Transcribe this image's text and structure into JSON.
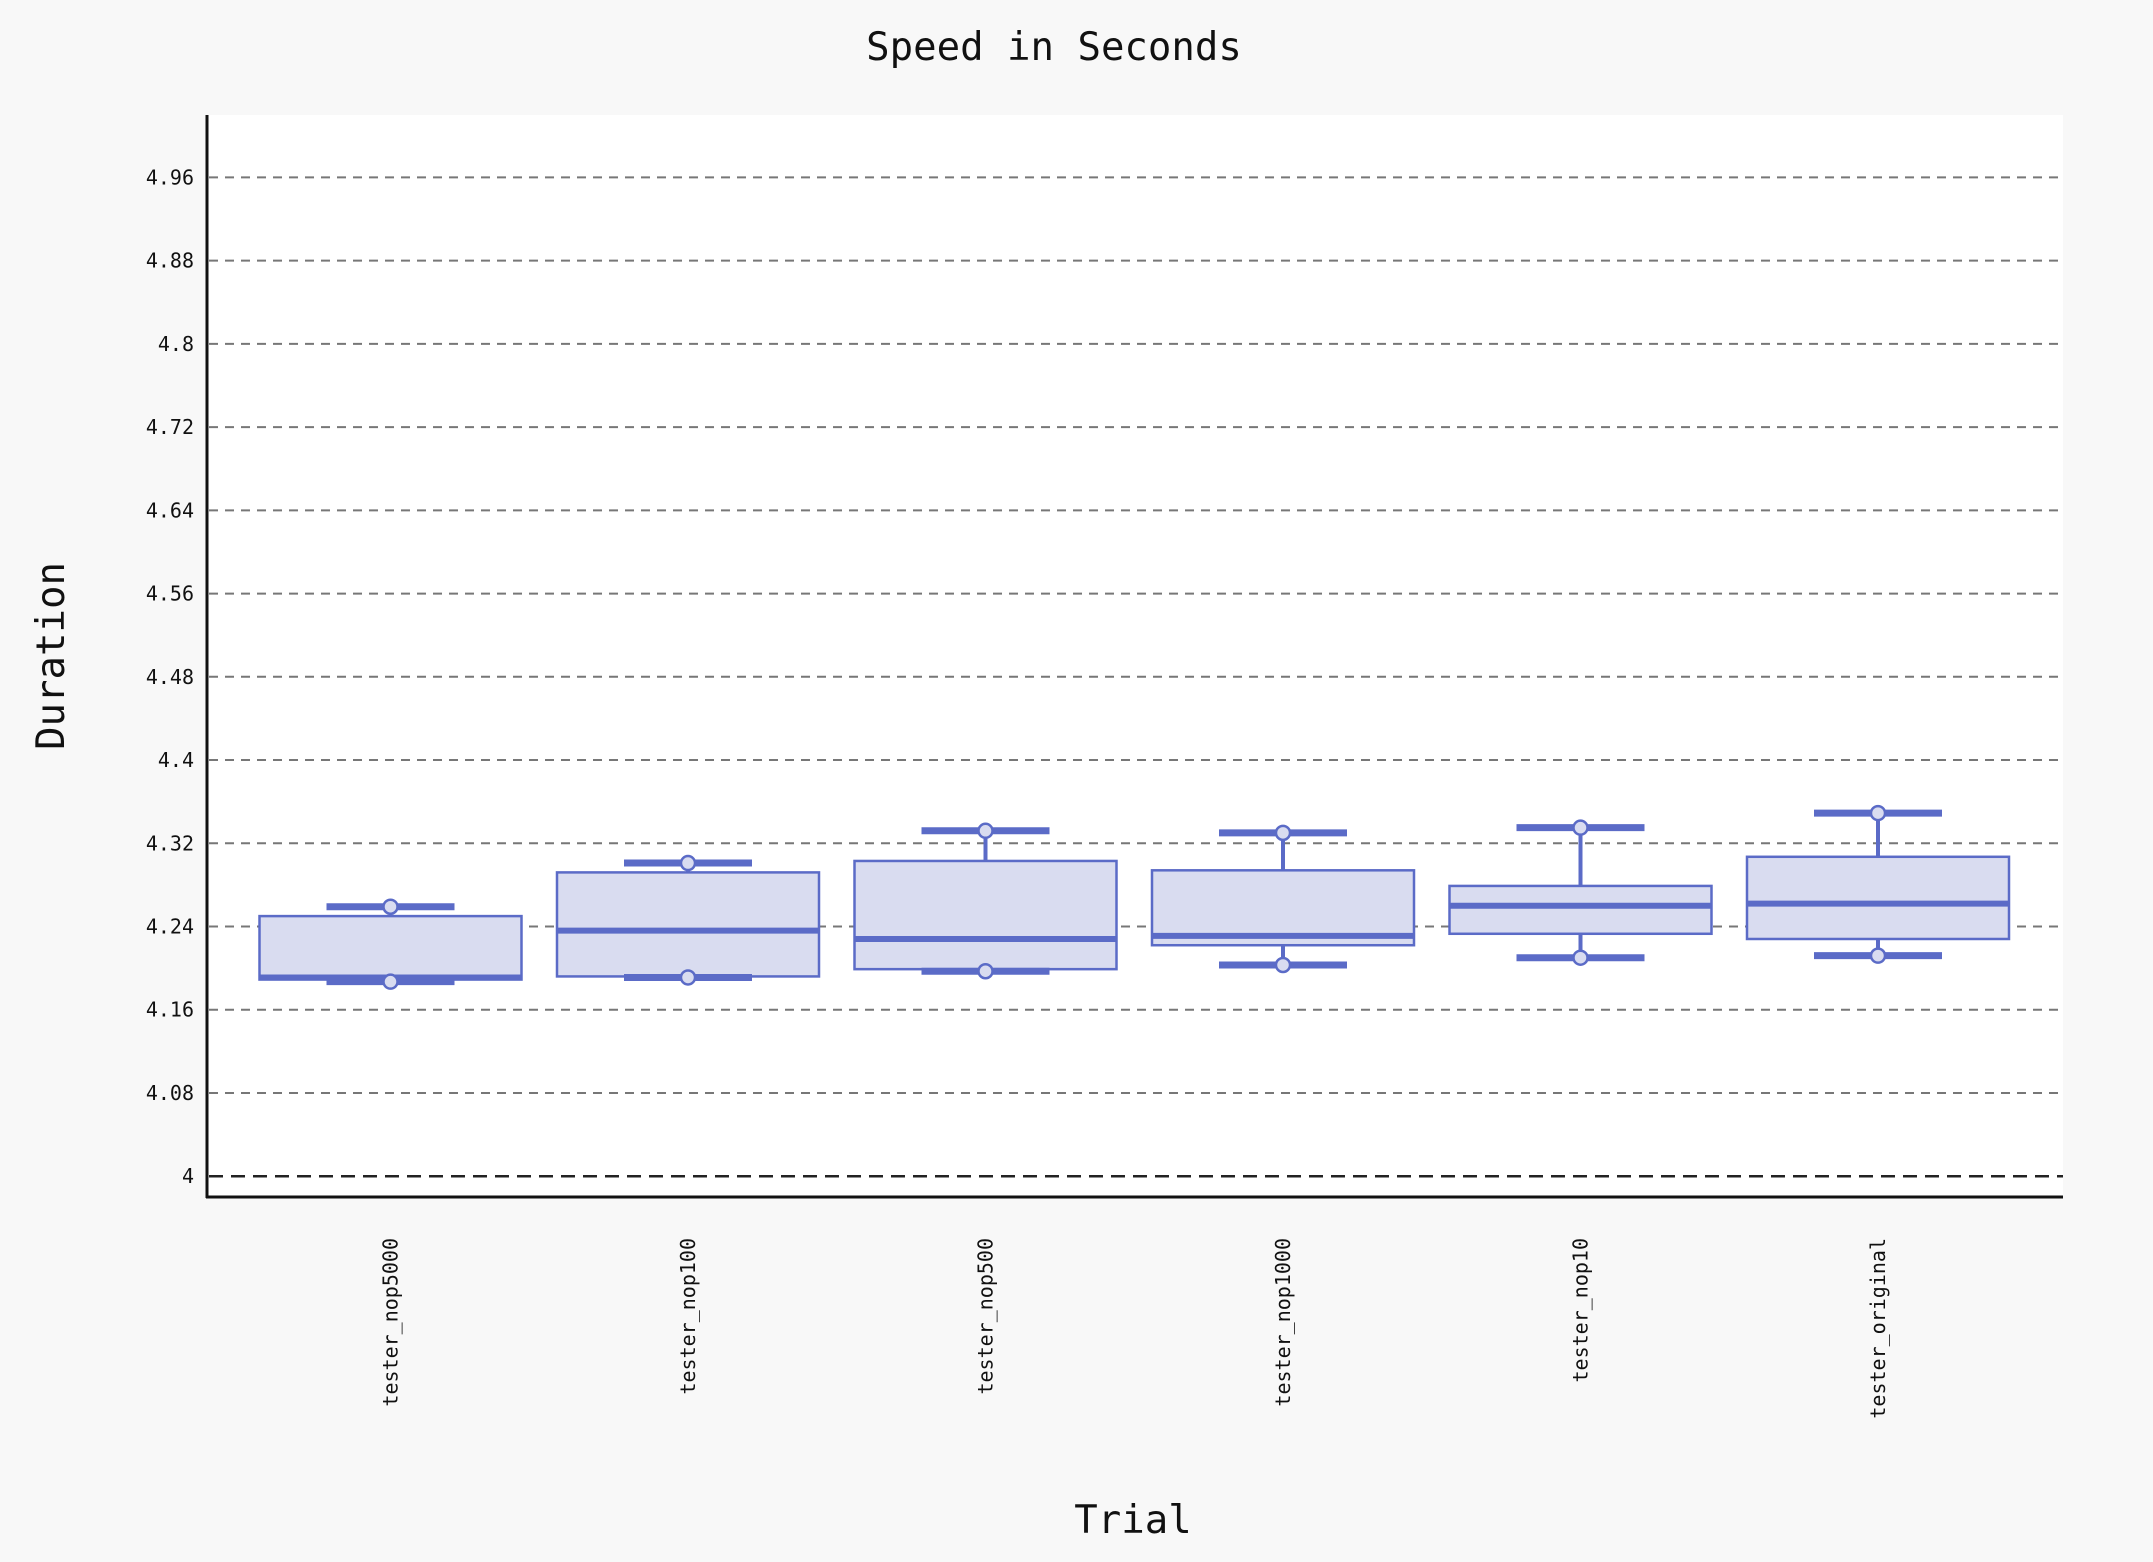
{
  "colors": {
    "background": "#f8f8f8",
    "plot_background": "#ffffff",
    "box_fill": "#d9dcf0",
    "box_stroke": "#5b6bc7",
    "grid": "#777777",
    "baseline_grid": "#222222",
    "axis": "#111111"
  },
  "chart_data": {
    "type": "box",
    "title": "Speed in Seconds",
    "xlabel": "Trial",
    "ylabel": "Duration",
    "ylim": [
      3.98,
      5.02
    ],
    "yticks": [
      4,
      4.08,
      4.16,
      4.24,
      4.32,
      4.4,
      4.48,
      4.56,
      4.64,
      4.72,
      4.8,
      4.88,
      4.96
    ],
    "grid": "horizontal dashed",
    "categories": [
      "tester_nop5000",
      "tester_nop100",
      "tester_nop500",
      "tester_nop1000",
      "tester_nop10",
      "tester_original"
    ],
    "boxes": [
      {
        "category": "tester_nop5000",
        "min": 4.187,
        "q1": 4.189,
        "median": 4.191,
        "q3": 4.25,
        "max": 4.259,
        "points": [
          4.187,
          4.259
        ]
      },
      {
        "category": "tester_nop100",
        "min": 4.191,
        "q1": 4.192,
        "median": 4.236,
        "q3": 4.292,
        "max": 4.301,
        "points": [
          4.191,
          4.301
        ]
      },
      {
        "category": "tester_nop500",
        "min": 4.197,
        "q1": 4.199,
        "median": 4.228,
        "q3": 4.303,
        "max": 4.332,
        "points": [
          4.197,
          4.332
        ]
      },
      {
        "category": "tester_nop1000",
        "min": 4.203,
        "q1": 4.222,
        "median": 4.231,
        "q3": 4.294,
        "max": 4.33,
        "points": [
          4.203,
          4.33
        ]
      },
      {
        "category": "tester_nop10",
        "min": 4.21,
        "q1": 4.233,
        "median": 4.26,
        "q3": 4.279,
        "max": 4.335,
        "points": [
          4.21,
          4.335
        ]
      },
      {
        "category": "tester_original",
        "min": 4.212,
        "q1": 4.228,
        "median": 4.262,
        "q3": 4.307,
        "max": 4.349,
        "points": [
          4.212,
          4.349
        ]
      }
    ]
  }
}
